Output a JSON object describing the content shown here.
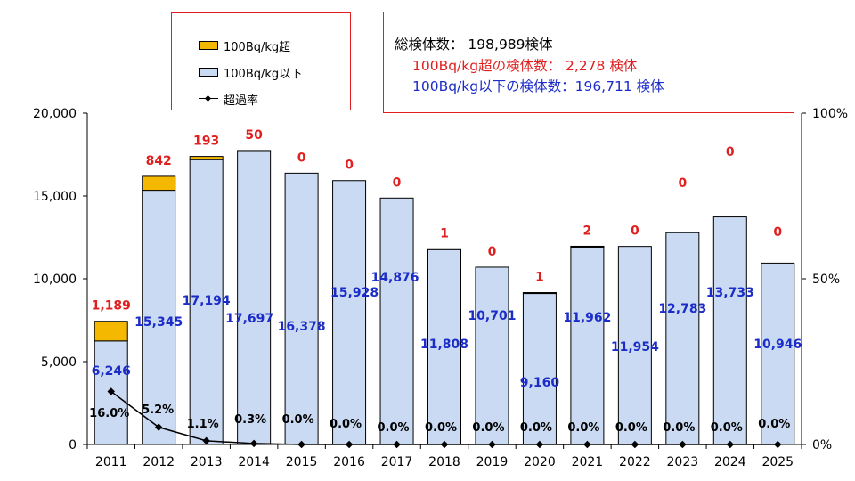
{
  "legend": {
    "over_label": "100Bq/kg超",
    "under_label": "100Bq/kg以下",
    "rate_label": "超過率"
  },
  "summary": {
    "total": "総検体数： 198,989検体",
    "over": "100Bq/kg超の検体数： 2,278  検体",
    "under": "100Bq/kg以下の検体数：196,711 検体"
  },
  "colors": {
    "over": "#f5b800",
    "under": "#c9daf2",
    "over_label": "#e02020",
    "under_label": "#1c2cc8",
    "rate_label": "#000000",
    "axis": "#000000"
  },
  "chart_data": {
    "type": "bar",
    "stacked": true,
    "categories": [
      "2011",
      "2012",
      "2013",
      "2014",
      "2015",
      "2016",
      "2017",
      "2018",
      "2019",
      "2020",
      "2021",
      "2022",
      "2023",
      "2024",
      "2025"
    ],
    "series": [
      {
        "name": "100Bq/kg以下",
        "values": [
          6246,
          15345,
          17194,
          17697,
          16378,
          15928,
          14876,
          11808,
          10701,
          9160,
          11962,
          11954,
          12783,
          13733,
          10946
        ]
      },
      {
        "name": "100Bq/kg超",
        "values": [
          1189,
          842,
          193,
          50,
          0,
          0,
          0,
          1,
          0,
          1,
          2,
          0,
          0,
          0,
          0
        ]
      },
      {
        "name": "超過率",
        "axis": "right",
        "type": "line",
        "values": [
          16.0,
          5.2,
          1.1,
          0.3,
          0.0,
          0.0,
          0.0,
          0.0,
          0.0,
          0.0,
          0.0,
          0.0,
          0.0,
          0.0,
          0.0
        ]
      }
    ],
    "under_labels": [
      "6,246",
      "15,345",
      "17,194",
      "17,697",
      "16,378",
      "15,928",
      "14,876",
      "11,808",
      "10,701",
      "9,160",
      "11,962",
      "11,954",
      "12,783",
      "13,733",
      "10,946"
    ],
    "over_labels": [
      "1,189",
      "842",
      "193",
      "50",
      "0",
      "0",
      "0",
      "1",
      "0",
      "1",
      "2",
      "0",
      "0",
      "0",
      "0"
    ],
    "rate_labels": [
      "16.0%",
      "5.2%",
      "1.1%",
      "0.3%",
      "0.0%",
      "0.0%",
      "0.0%",
      "0.0%",
      "0.0%",
      "0.0%",
      "0.0%",
      "0.0%",
      "0.0%",
      "0.0%",
      "0.0%"
    ],
    "y_left": {
      "min": 0,
      "max": 20000,
      "ticks": [
        0,
        5000,
        10000,
        15000,
        20000
      ],
      "tick_labels": [
        "0",
        "5,000",
        "10,000",
        "15,000",
        "20,000"
      ]
    },
    "y_right": {
      "min": 0,
      "max": 100,
      "ticks": [
        0,
        50,
        100
      ],
      "tick_labels": [
        "0%",
        "50%",
        "100%"
      ]
    },
    "xlabel": "",
    "ylabel": ""
  }
}
